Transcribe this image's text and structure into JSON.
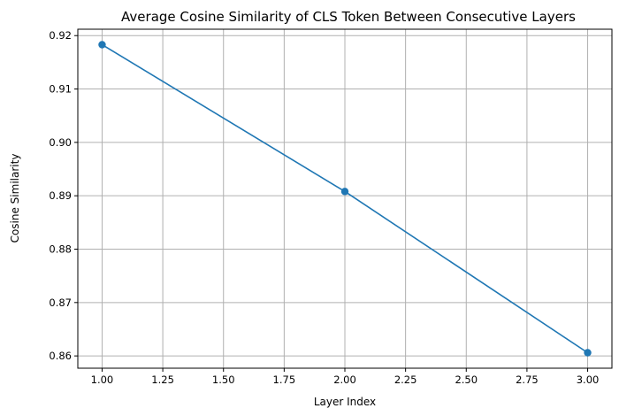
{
  "chart_data": {
    "type": "line",
    "title": "Average Cosine Similarity of CLS Token Between Consecutive Layers",
    "xlabel": "Layer Index",
    "ylabel": "Cosine Similarity",
    "x": [
      1,
      2,
      3
    ],
    "series": [
      {
        "values": [
          0.9183,
          0.8908,
          0.8606
        ],
        "color": "#1f77b4",
        "marker": "circle"
      }
    ],
    "xlim": [
      0.9,
      3.1
    ],
    "ylim": [
      0.8577,
      0.9212
    ],
    "xticks": [
      1.0,
      1.25,
      1.5,
      1.75,
      2.0,
      2.25,
      2.5,
      2.75,
      3.0
    ],
    "xtick_labels": [
      "1.00",
      "1.25",
      "1.50",
      "1.75",
      "2.00",
      "2.25",
      "2.50",
      "2.75",
      "3.00"
    ],
    "yticks": [
      0.86,
      0.87,
      0.88,
      0.89,
      0.9,
      0.91,
      0.92
    ],
    "ytick_labels": [
      "0.86",
      "0.87",
      "0.88",
      "0.89",
      "0.90",
      "0.91",
      "0.92"
    ],
    "grid": true,
    "legend": "none"
  }
}
